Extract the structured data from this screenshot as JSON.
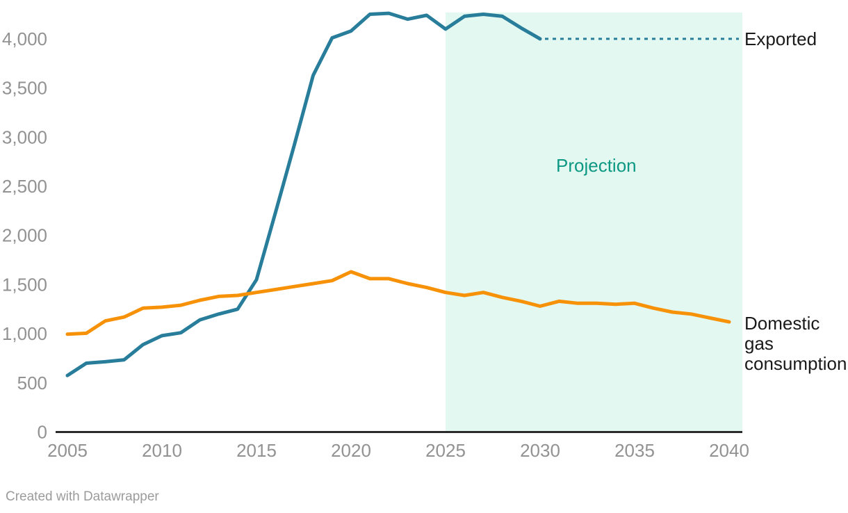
{
  "chart_data": {
    "type": "line",
    "title": "",
    "xlabel": "",
    "ylabel": "",
    "xlim": [
      2005,
      2040
    ],
    "ylim": [
      0,
      4300
    ],
    "grid": false,
    "legend_position": "direct-labels-right",
    "xticks": [
      2005,
      2010,
      2015,
      2020,
      2025,
      2030,
      2035,
      2040
    ],
    "xtick_labels": [
      "2005",
      "2010",
      "2015",
      "2020",
      "2025",
      "2030",
      "2035",
      "2040"
    ],
    "yticks": [
      0,
      500,
      1000,
      1500,
      2000,
      2500,
      3000,
      3500,
      4000
    ],
    "ytick_labels": [
      "0",
      "500",
      "1,000",
      "1,500",
      "2,000",
      "2,500",
      "3,000",
      "3,500",
      "4,000"
    ],
    "series": [
      {
        "name": "Exported",
        "color": "#287d9b",
        "x": [
          2005,
          2006,
          2007,
          2008,
          2009,
          2010,
          2011,
          2012,
          2013,
          2014,
          2015,
          2016,
          2017,
          2018,
          2019,
          2020,
          2021,
          2022,
          2023,
          2024,
          2025,
          2026,
          2027,
          2028,
          2029,
          2030
        ],
        "values": [
          575,
          700,
          715,
          735,
          890,
          980,
          1010,
          1140,
          1200,
          1250,
          1550,
          2230,
          2920,
          3630,
          4010,
          4080,
          4250,
          4260,
          4200,
          4240,
          4100,
          4230,
          4250,
          4230,
          4110,
          4000
        ],
        "projection_extension": {
          "style": "dotted",
          "x": [
            2030,
            2040
          ],
          "values": [
            4000,
            4000
          ]
        }
      },
      {
        "name": "Domestic gas consumption",
        "color": "#f79208",
        "x": [
          2005,
          2006,
          2007,
          2008,
          2009,
          2010,
          2011,
          2012,
          2013,
          2014,
          2015,
          2016,
          2017,
          2018,
          2019,
          2020,
          2021,
          2022,
          2023,
          2024,
          2025,
          2026,
          2027,
          2028,
          2029,
          2030,
          2031,
          2032,
          2033,
          2034,
          2035,
          2036,
          2037,
          2038,
          2039,
          2040
        ],
        "values": [
          995,
          1005,
          1130,
          1170,
          1260,
          1270,
          1290,
          1340,
          1380,
          1390,
          1420,
          1450,
          1480,
          1510,
          1540,
          1630,
          1560,
          1560,
          1510,
          1470,
          1420,
          1390,
          1420,
          1370,
          1330,
          1280,
          1330,
          1310,
          1310,
          1300,
          1310,
          1260,
          1220,
          1200,
          1160,
          1120
        ]
      }
    ],
    "projection_band": {
      "label": "Projection",
      "x_start": 2025,
      "x_end": 2040,
      "fill_color": "#e2f8f0",
      "label_color": "#0d9884"
    }
  },
  "annotations": {
    "exported_label": "Exported",
    "domestic_label_lines": [
      "Domestic",
      "gas",
      "consumption"
    ],
    "projection_label": "Projection"
  },
  "axis_colors": {
    "tick_label_color": "#929292",
    "axis_line_color": "#2b2b2b"
  },
  "footer": {
    "attribution": "Created with Datawrapper"
  }
}
